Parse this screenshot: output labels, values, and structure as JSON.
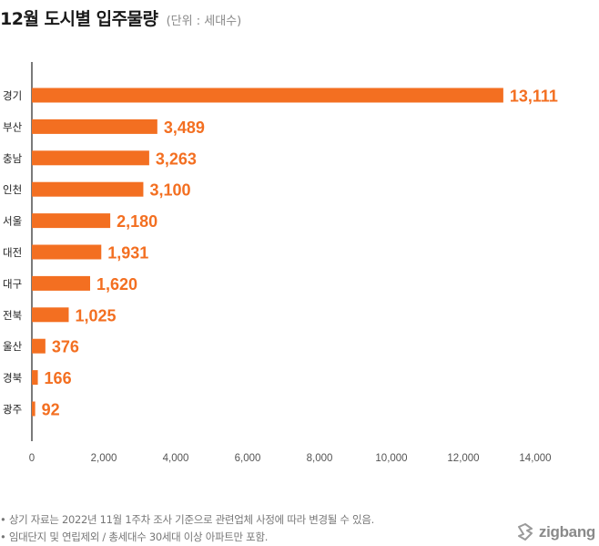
{
  "header": {
    "title": "12월 도시별 입주물량",
    "unit": "(단위 : 세대수)"
  },
  "chart_data": {
    "type": "bar",
    "orientation": "horizontal",
    "categories": [
      "경기",
      "부산",
      "충남",
      "인천",
      "서울",
      "대전",
      "대구",
      "전북",
      "울산",
      "경북",
      "광주"
    ],
    "values": [
      13111,
      3489,
      3263,
      3100,
      2180,
      1931,
      1620,
      1025,
      376,
      166,
      92
    ],
    "value_labels": [
      "13,111",
      "3,489",
      "3,263",
      "3,100",
      "2,180",
      "1,931",
      "1,620",
      "1,025",
      "376",
      "166",
      "92"
    ],
    "xlim": [
      0,
      14000
    ],
    "xticks": [
      0,
      2000,
      4000,
      6000,
      8000,
      10000,
      12000,
      14000
    ],
    "xtick_labels": [
      "0",
      "2,000",
      "4,000",
      "6,000",
      "8,000",
      "10,000",
      "12,000",
      "14,000"
    ],
    "title": "12월 도시별 입주물량",
    "xlabel": "",
    "ylabel": "",
    "grid": false,
    "bar_color": "#f36f21"
  },
  "footnotes": [
    "• 상기 자료는 2022년 11월 1주차 조사 기준으로 관련업체 사정에 따라 변경될 수 있음.",
    "• 임대단지 및 연립제외 / 총세대수 30세대 이상 아파트만 포함."
  ],
  "brand": {
    "name": "zigbang",
    "icon": "zigbang-logo-icon",
    "color": "#8a8a8a"
  }
}
